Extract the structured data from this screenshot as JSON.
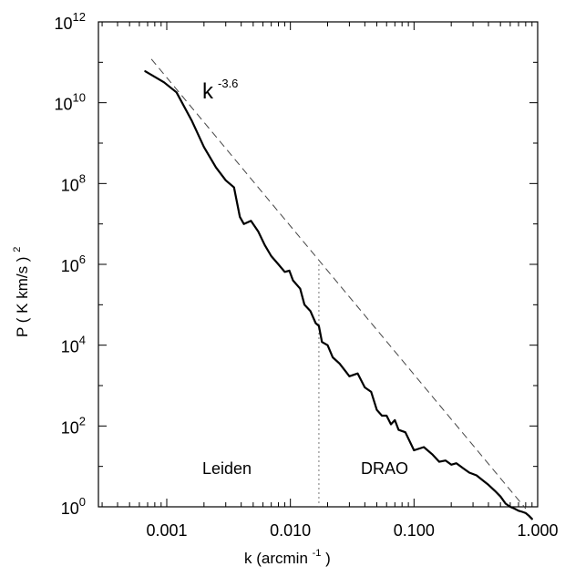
{
  "chart_data": {
    "type": "line",
    "xlabel": "k (arcmin",
    "xlabel_sup": "-1",
    "xlabel_close": ")",
    "ylabel": "P ( K km/s )",
    "ylabel_sup": "2",
    "x_scale": "log",
    "y_scale": "log",
    "xlim": [
      0.00028,
      1.0
    ],
    "ylim": [
      1,
      1000000000000
    ],
    "x_ticks": [
      {
        "value": 0.001,
        "label": "0.001"
      },
      {
        "value": 0.01,
        "label": "0.010"
      },
      {
        "value": 0.1,
        "label": "0.100"
      },
      {
        "value": 1.0,
        "label": "1.000"
      }
    ],
    "y_ticks": [
      {
        "value": 1,
        "base": "10",
        "exp": "0"
      },
      {
        "value": 100,
        "base": "10",
        "exp": "2"
      },
      {
        "value": 10000,
        "base": "10",
        "exp": "4"
      },
      {
        "value": 1000000,
        "base": "10",
        "exp": "6"
      },
      {
        "value": 100000000,
        "base": "10",
        "exp": "8"
      },
      {
        "value": 10000000000,
        "base": "10",
        "exp": "10"
      },
      {
        "value": 1000000000000,
        "base": "10",
        "exp": "12"
      }
    ],
    "grid": false,
    "series": [
      {
        "style": "solid",
        "x": [
          0.00067,
          0.00095,
          0.0012,
          0.0016,
          0.002,
          0.0025,
          0.003,
          0.0035,
          0.0039,
          0.0042,
          0.0048,
          0.0055,
          0.0062,
          0.007,
          0.008,
          0.009,
          0.0098,
          0.0105,
          0.012,
          0.013,
          0.0145,
          0.016,
          0.017,
          0.018,
          0.02,
          0.022,
          0.025,
          0.03,
          0.035,
          0.04,
          0.045,
          0.05,
          0.055,
          0.06,
          0.065,
          0.07,
          0.075,
          0.085,
          0.1,
          0.12,
          0.14,
          0.16,
          0.18,
          0.2,
          0.22,
          0.25,
          0.28,
          0.32,
          0.36,
          0.4,
          0.45,
          0.5,
          0.55,
          0.6,
          0.65,
          0.7,
          0.75,
          0.8,
          0.85,
          0.9
        ],
        "y": [
          60000000000,
          32000000000,
          18000000000,
          3500000000,
          800000000,
          250000000,
          120000000,
          80000000,
          15000000,
          10000000,
          12000000,
          6500000,
          3000000,
          1600000,
          1000000,
          650000,
          700000,
          400000,
          250000,
          100000,
          70000,
          35000,
          30000,
          12000,
          10000,
          5000,
          3500,
          1700,
          2000,
          900,
          700,
          250,
          180,
          180,
          110,
          140,
          80,
          70,
          25,
          30,
          20,
          13,
          14,
          11,
          12,
          9,
          7,
          6,
          4.5,
          3.5,
          2.5,
          1.8,
          1.2,
          1.0,
          0.9,
          0.8,
          0.75,
          0.7,
          0.6,
          0.5
        ]
      },
      {
        "style": "dashed",
        "x": [
          0.00075,
          0.8
        ],
        "y": [
          120000000000,
          0.9
        ]
      }
    ],
    "annotations": [
      {
        "text": "k",
        "sup": "-3.6"
      },
      {
        "text": "Leiden"
      },
      {
        "text": "DRAO"
      }
    ],
    "dotted_divider_x": 0.017
  }
}
